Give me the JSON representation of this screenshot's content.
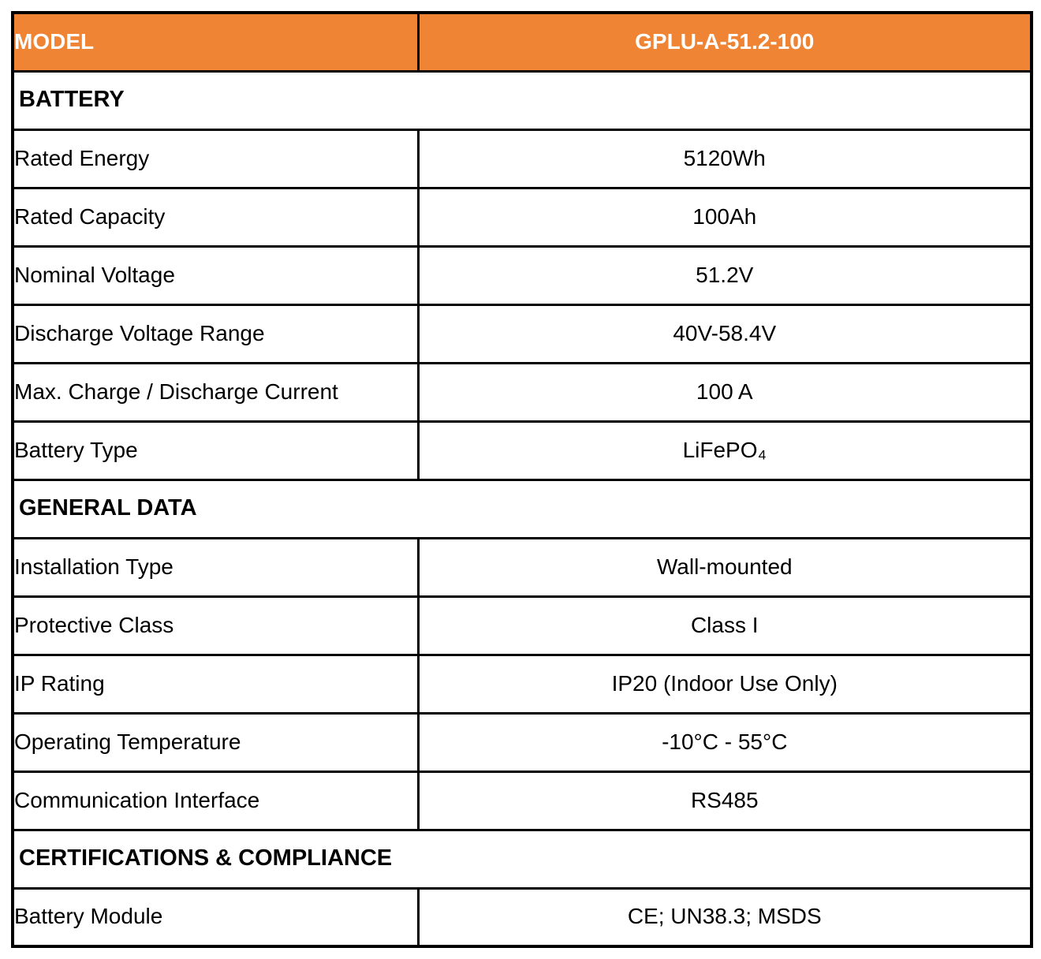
{
  "table": {
    "header": {
      "model_label": "MODEL",
      "model_value": "GPLU-A-51.2-100"
    },
    "sections": [
      {
        "title": "BATTERY",
        "rows": [
          {
            "label": "Rated Energy",
            "value": "5120Wh"
          },
          {
            "label": "Rated Capacity",
            "value": "100Ah"
          },
          {
            "label": "Nominal Voltage",
            "value": "51.2V"
          },
          {
            "label": "Discharge Voltage Range",
            "value": "40V-58.4V"
          },
          {
            "label": "Max. Charge / Discharge Current",
            "value": "100 A"
          },
          {
            "label": "Battery Type",
            "value": "LiFePO₄"
          }
        ]
      },
      {
        "title": "GENERAL DATA",
        "rows": [
          {
            "label": "Installation Type",
            "value": "Wall-mounted"
          },
          {
            "label": "Protective Class",
            "value": "Class I"
          },
          {
            "label": "IP Rating",
            "value": "IP20 (Indoor Use Only)"
          },
          {
            "label": "Operating Temperature",
            "value": "-10°C - 55°C"
          },
          {
            "label": "Communication Interface",
            "value": "RS485"
          }
        ]
      },
      {
        "title": "CERTIFICATIONS & COMPLIANCE",
        "rows": [
          {
            "label": "Battery Module",
            "value": "CE; UN38.3; MSDS"
          }
        ]
      }
    ],
    "colors": {
      "header_bg": "#EE8434",
      "header_text": "#FFFFFF",
      "border": "#000000",
      "body_text": "#000000",
      "page_bg": "#FFFFFF"
    }
  }
}
